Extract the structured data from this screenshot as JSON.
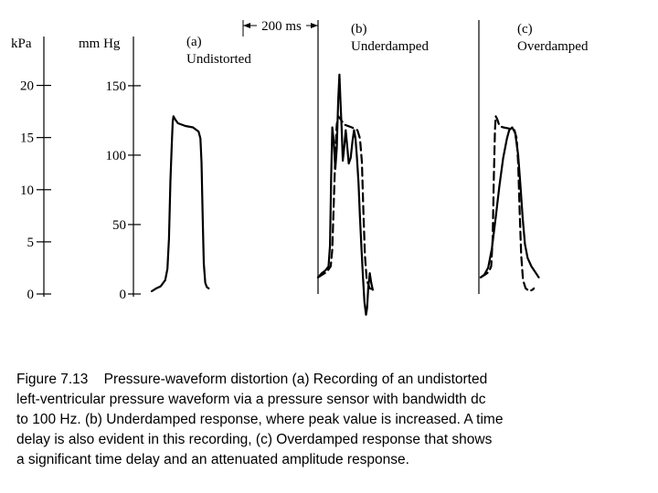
{
  "chart_data": {
    "type": "line",
    "axes": {
      "kpa": {
        "label": "kPa",
        "ticks": [
          "0",
          "5",
          "10",
          "15",
          "20"
        ],
        "range": [
          0,
          22.5
        ]
      },
      "mmhg": {
        "label": "mm Hg",
        "ticks": [
          "0",
          "50",
          "100",
          "150"
        ],
        "range": [
          0,
          169
        ]
      }
    },
    "time_scale": {
      "label": "200 ms",
      "value_ms": 200
    },
    "panels": [
      {
        "id": "a",
        "tag": "(a)",
        "name": "Undistorted",
        "series": [
          {
            "style": "solid",
            "points": [
              [
                0,
                2
              ],
              [
                12,
                4
              ],
              [
                24,
                5.5
              ],
              [
                36,
                10
              ],
              [
                42,
                18
              ],
              [
                46,
                40
              ],
              [
                50,
                82
              ],
              [
                54,
                110
              ],
              [
                56,
                124
              ],
              [
                58,
                128
              ],
              [
                62,
                126
              ],
              [
                70,
                123
              ],
              [
                90,
                121
              ],
              [
                110,
                120
              ],
              [
                125,
                117
              ],
              [
                130,
                112
              ],
              [
                133,
                95
              ],
              [
                136,
                55
              ],
              [
                139,
                22
              ],
              [
                143,
                8
              ],
              [
                147,
                5
              ],
              [
                152,
                4
              ]
            ]
          }
        ]
      },
      {
        "id": "b",
        "tag": "(b)",
        "name": "Underdamped",
        "series": [
          {
            "style": "solid",
            "points": [
              [
                0,
                12
              ],
              [
                10,
                15
              ],
              [
                20,
                17
              ],
              [
                28,
                20
              ],
              [
                32,
                35
              ],
              [
                35,
                85
              ],
              [
                38,
                120
              ],
              [
                42,
                110
              ],
              [
                46,
                90
              ],
              [
                50,
                105
              ],
              [
                54,
                140
              ],
              [
                57,
                158
              ],
              [
                60,
                138
              ],
              [
                63,
                120
              ],
              [
                66,
                96
              ],
              [
                70,
                106
              ],
              [
                74,
                118
              ],
              [
                78,
                106
              ],
              [
                82,
                94
              ],
              [
                87,
                98
              ],
              [
                92,
                110
              ],
              [
                96,
                118
              ],
              [
                100,
                112
              ],
              [
                104,
                98
              ],
              [
                108,
                80
              ],
              [
                112,
                55
              ],
              [
                116,
                32
              ],
              [
                120,
                12
              ],
              [
                124,
                -6
              ],
              [
                128,
                -15
              ],
              [
                131,
                -10
              ],
              [
                134,
                4
              ],
              [
                138,
                15
              ],
              [
                142,
                8
              ],
              [
                146,
                3
              ]
            ]
          },
          {
            "style": "dashed",
            "points": [
              [
                0,
                12
              ],
              [
                12,
                14
              ],
              [
                24,
                16
              ],
              [
                34,
                20
              ],
              [
                38,
                32
              ],
              [
                42,
                65
              ],
              [
                46,
                100
              ],
              [
                50,
                122
              ],
              [
                54,
                128
              ],
              [
                60,
                126
              ],
              [
                70,
                122
              ],
              [
                90,
                120
              ],
              [
                105,
                118
              ],
              [
                112,
                112
              ],
              [
                117,
                95
              ],
              [
                121,
                60
              ],
              [
                125,
                28
              ],
              [
                130,
                10
              ],
              [
                138,
                4
              ],
              [
                150,
                3
              ]
            ]
          }
        ]
      },
      {
        "id": "c",
        "tag": "(c)",
        "name": "Overdamped",
        "series": [
          {
            "style": "solid",
            "points": [
              [
                0,
                12
              ],
              [
                10,
                14
              ],
              [
                20,
                19
              ],
              [
                30,
                33
              ],
              [
                40,
                55
              ],
              [
                50,
                78
              ],
              [
                60,
                98
              ],
              [
                70,
                112
              ],
              [
                76,
                118
              ],
              [
                84,
                120
              ],
              [
                92,
                116
              ],
              [
                100,
                100
              ],
              [
                106,
                78
              ],
              [
                112,
                55
              ],
              [
                118,
                36
              ],
              [
                125,
                26
              ],
              [
                135,
                20
              ],
              [
                145,
                16
              ],
              [
                155,
                12
              ]
            ]
          },
          {
            "style": "dashed",
            "points": [
              [
                0,
                12
              ],
              [
                12,
                14
              ],
              [
                22,
                16
              ],
              [
                28,
                20
              ],
              [
                32,
                40
              ],
              [
                35,
                85
              ],
              [
                38,
                118
              ],
              [
                40,
                128
              ],
              [
                44,
                126
              ],
              [
                50,
                121
              ],
              [
                60,
                120
              ],
              [
                78,
                119
              ],
              [
                90,
                118
              ],
              [
                96,
                112
              ],
              [
                100,
                94
              ],
              [
                104,
                60
              ],
              [
                108,
                28
              ],
              [
                113,
                10
              ],
              [
                120,
                4
              ],
              [
                130,
                2
              ],
              [
                138,
                3
              ],
              [
                142,
                4
              ]
            ]
          }
        ]
      }
    ]
  },
  "caption": {
    "figure_label": "Figure 7.13",
    "lines": [
      [
        "Pressure-waveform distortion (a) Recording of an undistorted"
      ],
      [
        "left-ventricular pressure waveform via a pressure sensor with bandwidth dc"
      ],
      [
        "to 100 Hz. (b) Underdamped response, where peak value is increased. A time"
      ],
      [
        "delay is also evident in this recording, (c) Overdamped response that shows"
      ],
      [
        "a significant time delay and an attenuated amplitude response."
      ]
    ]
  }
}
